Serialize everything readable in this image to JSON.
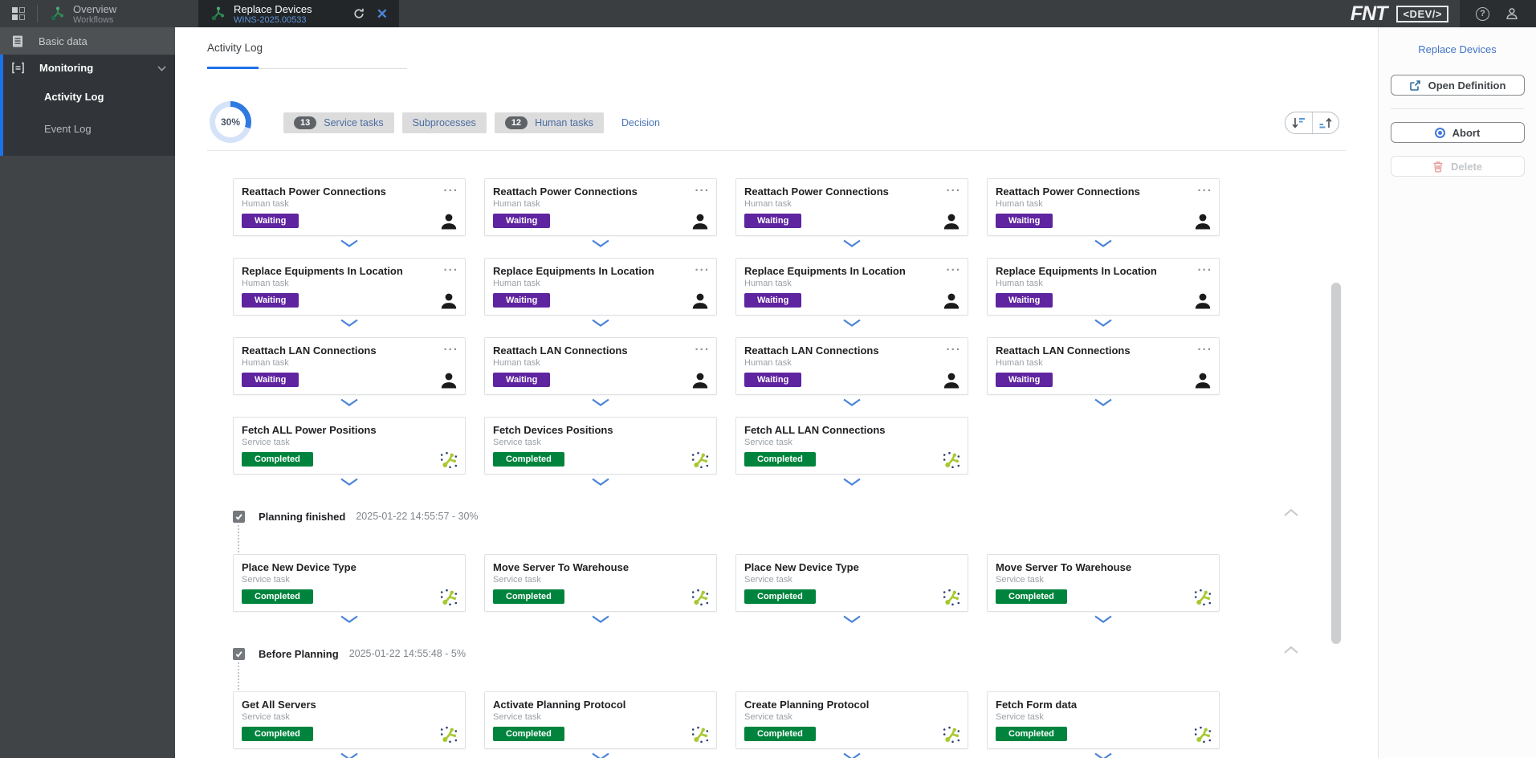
{
  "topbar": {
    "tabs": [
      {
        "title": "Overview",
        "subtitle": "Workflows",
        "active": false
      },
      {
        "title": "Replace Devices",
        "subtitle": "WINS-2025.00533",
        "active": true
      }
    ],
    "logo": "FNT",
    "env_badge": "<DEV/>",
    "help_glyph": "?"
  },
  "sidebar": {
    "items": [
      {
        "label": "Basic data"
      },
      {
        "label": "Monitoring",
        "expanded": true,
        "children": [
          {
            "label": "Activity Log",
            "active": true
          },
          {
            "label": "Event Log",
            "active": false
          }
        ]
      }
    ]
  },
  "main": {
    "tab_label": "Activity Log",
    "progress_percent": "30%",
    "filter_badges": [
      {
        "count": "13",
        "label": "Service tasks"
      },
      {
        "count": "",
        "label": "Subprocesses"
      },
      {
        "count": "12",
        "label": "Human tasks"
      }
    ],
    "decision_link": "Decision",
    "menu_glyph": "...",
    "groups": [
      {
        "type": "cards",
        "cards": [
          {
            "title": "Reattach Power Connections",
            "task_type": "Human task",
            "status": "Waiting",
            "status_color": "#5f249f",
            "icon": "person",
            "menu": true
          },
          {
            "title": "Reattach Power Connections",
            "task_type": "Human task",
            "status": "Waiting",
            "status_color": "#5f249f",
            "icon": "person",
            "menu": true
          },
          {
            "title": "Reattach Power Connections",
            "task_type": "Human task",
            "status": "Waiting",
            "status_color": "#5f249f",
            "icon": "person",
            "menu": true
          },
          {
            "title": "Reattach Power Connections",
            "task_type": "Human task",
            "status": "Waiting",
            "status_color": "#5f249f",
            "icon": "person",
            "menu": true
          }
        ]
      },
      {
        "type": "cards",
        "cards": [
          {
            "title": "Replace Equipments In Location",
            "task_type": "Human task",
            "status": "Waiting",
            "status_color": "#5f249f",
            "icon": "person",
            "menu": true
          },
          {
            "title": "Replace Equipments In Location",
            "task_type": "Human task",
            "status": "Waiting",
            "status_color": "#5f249f",
            "icon": "person",
            "menu": true
          },
          {
            "title": "Replace Equipments In Location",
            "task_type": "Human task",
            "status": "Waiting",
            "status_color": "#5f249f",
            "icon": "person",
            "menu": true
          },
          {
            "title": "Replace Equipments In Location",
            "task_type": "Human task",
            "status": "Waiting",
            "status_color": "#5f249f",
            "icon": "person",
            "menu": true
          }
        ]
      },
      {
        "type": "cards",
        "cards": [
          {
            "title": "Reattach LAN Connections",
            "task_type": "Human task",
            "status": "Waiting",
            "status_color": "#5f249f",
            "icon": "person",
            "menu": true
          },
          {
            "title": "Reattach LAN Connections",
            "task_type": "Human task",
            "status": "Waiting",
            "status_color": "#5f249f",
            "icon": "person",
            "menu": true
          },
          {
            "title": "Reattach LAN Connections",
            "task_type": "Human task",
            "status": "Waiting",
            "status_color": "#5f249f",
            "icon": "person",
            "menu": true
          },
          {
            "title": "Reattach LAN Connections",
            "task_type": "Human task",
            "status": "Waiting",
            "status_color": "#5f249f",
            "icon": "person",
            "menu": true
          }
        ]
      },
      {
        "type": "cards",
        "cards": [
          {
            "title": "Fetch ALL Power Positions",
            "task_type": "Service task",
            "status": "Completed",
            "status_color": "#00843d",
            "icon": "service",
            "menu": false
          },
          {
            "title": "Fetch Devices Positions",
            "task_type": "Service task",
            "status": "Completed",
            "status_color": "#00843d",
            "icon": "service",
            "menu": false
          },
          {
            "title": "Fetch ALL LAN Connections",
            "task_type": "Service task",
            "status": "Completed",
            "status_color": "#00843d",
            "icon": "service",
            "menu": false
          }
        ]
      },
      {
        "type": "section",
        "label": "Planning finished",
        "timestamp": "2025-01-22 14:55:57 - 30%"
      },
      {
        "type": "cards",
        "cards": [
          {
            "title": "Place New Device Type",
            "task_type": "Service task",
            "status": "Completed",
            "status_color": "#00843d",
            "icon": "service",
            "menu": false
          },
          {
            "title": "Move Server To Warehouse",
            "task_type": "Service task",
            "status": "Completed",
            "status_color": "#00843d",
            "icon": "service",
            "menu": false
          },
          {
            "title": "Place New Device Type",
            "task_type": "Service task",
            "status": "Completed",
            "status_color": "#00843d",
            "icon": "service",
            "menu": false
          },
          {
            "title": "Move Server To Warehouse",
            "task_type": "Service task",
            "status": "Completed",
            "status_color": "#00843d",
            "icon": "service",
            "menu": false
          }
        ]
      },
      {
        "type": "section",
        "label": "Before Planning",
        "timestamp": "2025-01-22 14:55:48 - 5%"
      },
      {
        "type": "cards",
        "cards": [
          {
            "title": "Get All Servers",
            "task_type": "Service task",
            "status": "Completed",
            "status_color": "#00843d",
            "icon": "service",
            "menu": false
          },
          {
            "title": "Activate Planning Protocol",
            "task_type": "Service task",
            "status": "Completed",
            "status_color": "#00843d",
            "icon": "service",
            "menu": false
          },
          {
            "title": "Create Planning Protocol",
            "task_type": "Service task",
            "status": "Completed",
            "status_color": "#00843d",
            "icon": "service",
            "menu": false
          },
          {
            "title": "Fetch Form data",
            "task_type": "Service task",
            "status": "Completed",
            "status_color": "#00843d",
            "icon": "service",
            "menu": false
          }
        ]
      }
    ]
  },
  "right_panel": {
    "title": "Replace Devices",
    "open_definition_label": "Open Definition",
    "abort_label": "Abort",
    "delete_label": "Delete"
  },
  "colors": {
    "accent_blue": "#1a73e8",
    "waiting_purple": "#5f249f",
    "completed_green": "#00843d",
    "topbar_bg": "#3a3e41",
    "sidebar_bg": "#404447",
    "badge_bg": "#dcdcdc",
    "link_blue": "#4a74b8"
  }
}
